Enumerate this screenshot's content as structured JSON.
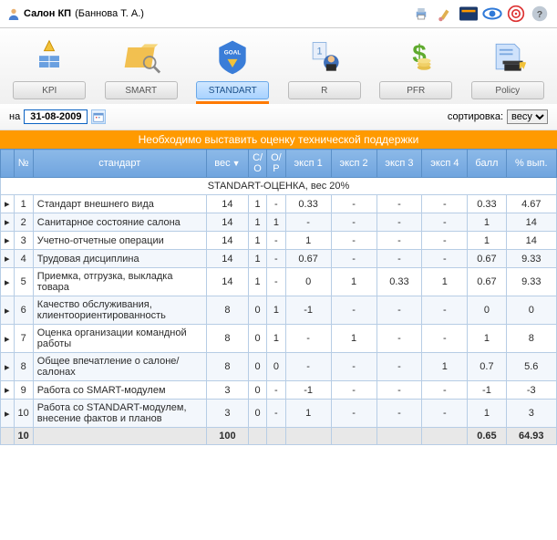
{
  "header": {
    "title_prefix": "Салон КП",
    "title_user": "(Баннова Т. А.)",
    "icons": [
      "printer-icon",
      "brush-icon",
      "card-icon",
      "eye-icon",
      "target-icon",
      "help-icon"
    ]
  },
  "toolbar": {
    "items": [
      {
        "label": "KPI",
        "icon": "kpi-icon",
        "active": false,
        "color": "#e8b020"
      },
      {
        "label": "SMART",
        "icon": "smart-icon",
        "active": false,
        "color": "#f2aa1f"
      },
      {
        "label": "STANDART",
        "icon": "standart-icon",
        "active": true,
        "color": "#2f79d8"
      },
      {
        "label": "R",
        "icon": "r-icon",
        "active": false,
        "color": "#4b82d6"
      },
      {
        "label": "PFR",
        "icon": "pfr-icon",
        "active": false,
        "color": "#5faa2e"
      },
      {
        "label": "Policy",
        "icon": "policy-icon",
        "active": false,
        "color": "#3260c5"
      }
    ]
  },
  "filter": {
    "on_label": "на",
    "date": "31-08-2009",
    "sort_label": "сортировка:",
    "sort_value": "весу"
  },
  "orange_message": "Необходимо выставить оценку технической поддержки",
  "columns": {
    "num": "№",
    "standard": "стандарт",
    "weight": "вес",
    "co": "С/О",
    "or": "О/Р",
    "e1": "эксп 1",
    "e2": "эксп 2",
    "e3": "эксп 3",
    "e4": "эксп 4",
    "score": "балл",
    "percent": "% вып."
  },
  "section_title": "STANDART-ОЦЕНКА, вес 20%",
  "rows": [
    {
      "n": 1,
      "name": "Стандарт внешнего вида",
      "w": 14,
      "co": 1,
      "or": "-",
      "e1": "0.33",
      "e2": "-",
      "e3": "-",
      "e4": "-",
      "score": "0.33",
      "pct": "4.67"
    },
    {
      "n": 2,
      "name": "Санитарное состояние салона",
      "w": 14,
      "co": 1,
      "or": "1",
      "e1": "-",
      "e2": "-",
      "e3": "-",
      "e4": "-",
      "score": "1",
      "pct": "14"
    },
    {
      "n": 3,
      "name": "Учетно-отчетные операции",
      "w": 14,
      "co": 1,
      "or": "-",
      "e1": "1",
      "e2": "-",
      "e3": "-",
      "e4": "-",
      "score": "1",
      "pct": "14"
    },
    {
      "n": 4,
      "name": "Трудовая дисциплина",
      "w": 14,
      "co": 1,
      "or": "-",
      "e1": "0.67",
      "e2": "-",
      "e3": "-",
      "e4": "-",
      "score": "0.67",
      "pct": "9.33"
    },
    {
      "n": 5,
      "name": "Приемка, отгрузка, выкладка товара",
      "w": 14,
      "co": 1,
      "or": "-",
      "e1": "0",
      "e2": "1",
      "e3": "0.33",
      "e4": "1",
      "score": "0.67",
      "pct": "9.33"
    },
    {
      "n": 6,
      "name": "Качество обслуживания, клиентоориентированность",
      "w": 8,
      "co": 0,
      "or": "1",
      "e1": "-1",
      "e2": "-",
      "e3": "-",
      "e4": "-",
      "score": "0",
      "pct": "0"
    },
    {
      "n": 7,
      "name": "Оценка организации командной работы",
      "w": 8,
      "co": 0,
      "or": "1",
      "e1": "-",
      "e2": "1",
      "e3": "-",
      "e4": "-",
      "score": "1",
      "pct": "8"
    },
    {
      "n": 8,
      "name": "Общее впечатление о салоне/салонах",
      "w": 8,
      "co": 0,
      "or": "0",
      "e1": "-",
      "e2": "-",
      "e3": "-",
      "e4": "1",
      "score": "0.7",
      "pct": "5.6"
    },
    {
      "n": 9,
      "name": "Работа со SMART-модулем",
      "w": 3,
      "co": 0,
      "or": "-",
      "e1": "-1",
      "e2": "-",
      "e3": "-",
      "e4": "-",
      "score": "-1",
      "pct": "-3"
    },
    {
      "n": 10,
      "name": "Работа со STANDART-модулем, внесение фактов и планов",
      "w": 3,
      "co": 0,
      "or": "-",
      "e1": "1",
      "e2": "-",
      "e3": "-",
      "e4": "-",
      "score": "1",
      "pct": "3"
    }
  ],
  "footer": {
    "count": "10",
    "w": "100",
    "score": "0.65",
    "pct": "64.93"
  },
  "style": {
    "orange": "#ff9a00",
    "header_grad_top": "#8cb9e8",
    "header_grad_bottom": "#6fa4de",
    "border": "#b7cde5",
    "alt_row": "#f3f7fc",
    "link_color": "#3a6fb5"
  }
}
